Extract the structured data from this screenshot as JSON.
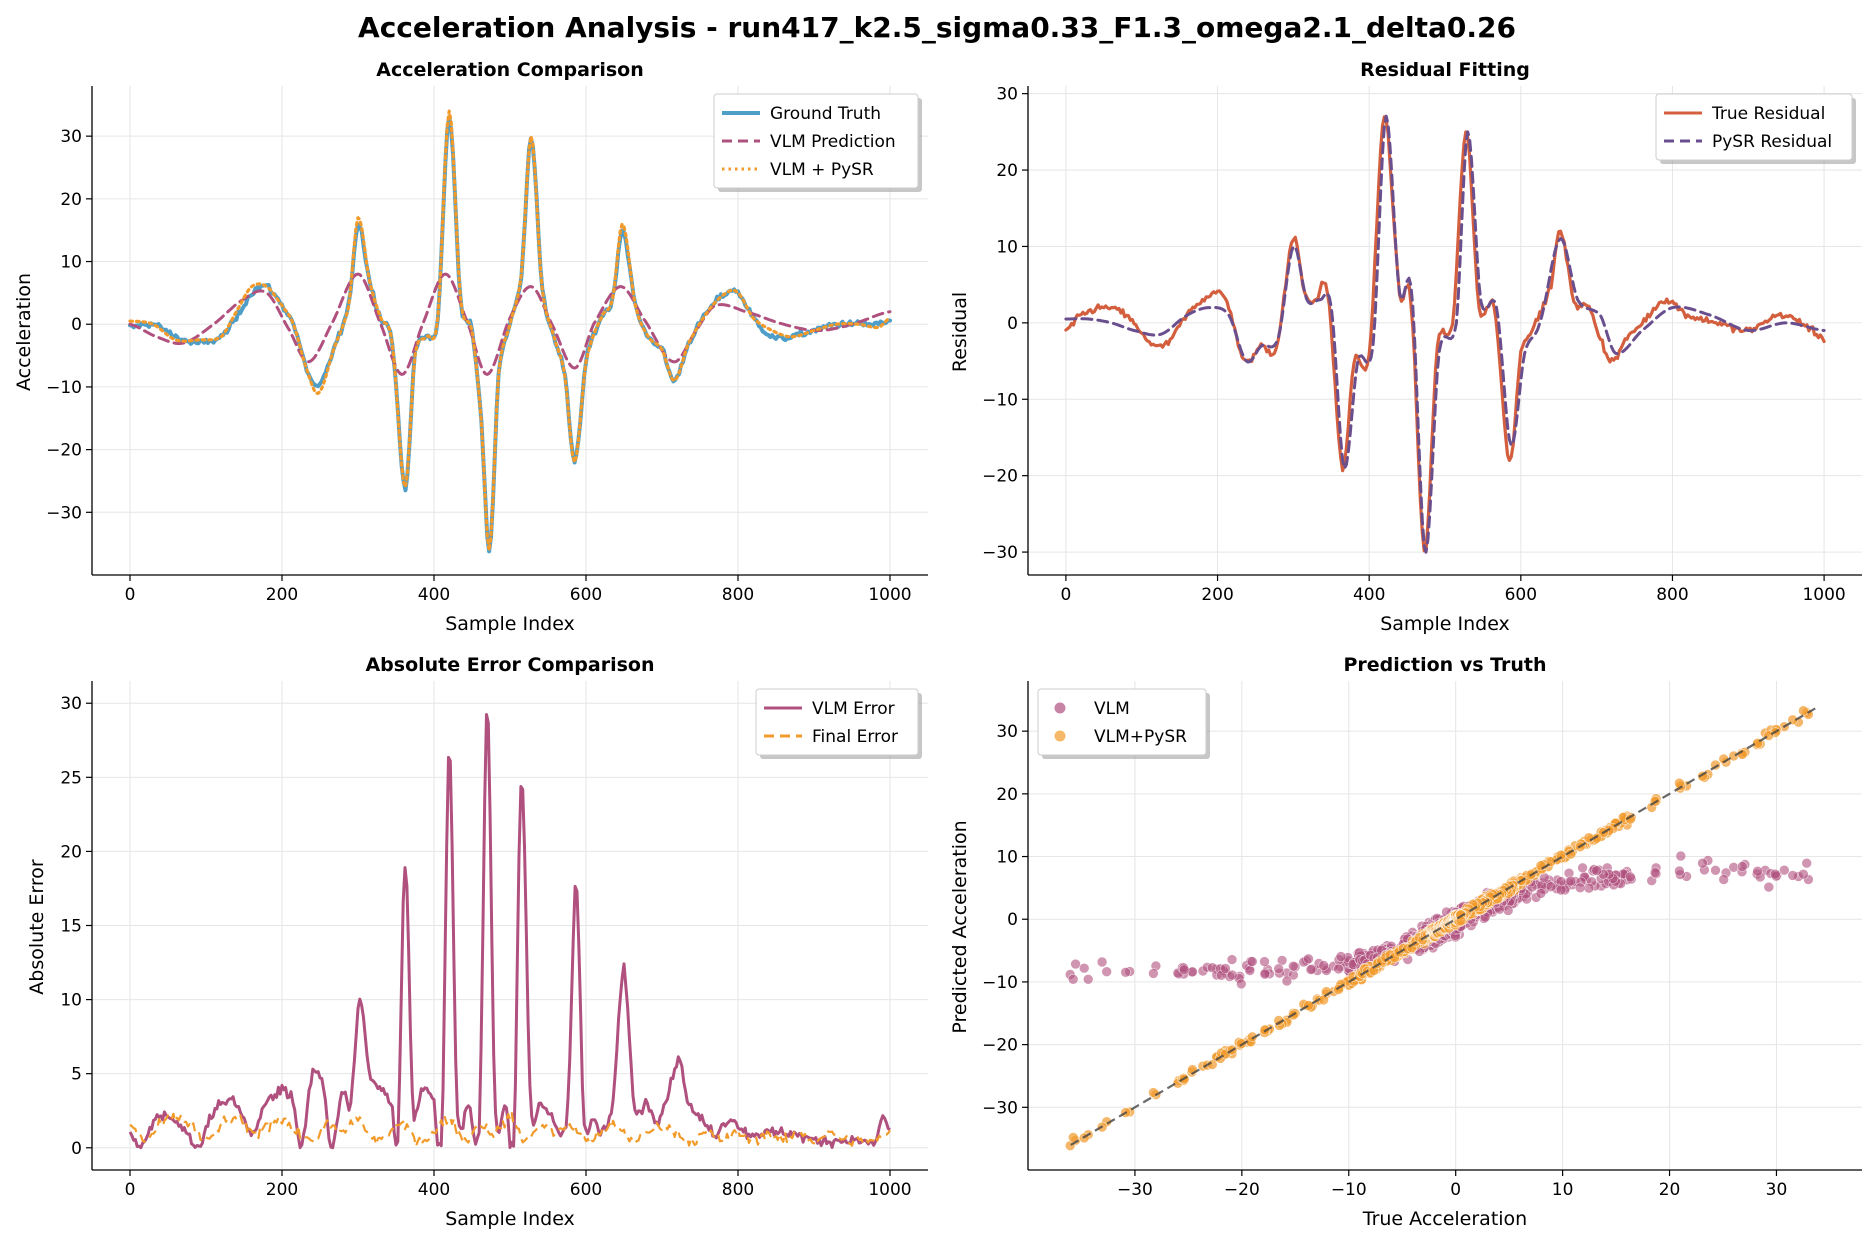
{
  "figure": {
    "title": "Acceleration Analysis - run417_k2.5_sigma0.33_F1.3_omega2.1_delta0.26"
  },
  "colors": {
    "ground_truth": "#4f9ec8",
    "vlm": "#b0507e",
    "pysr": "#f29a2a",
    "true_residual": "#d45f3e",
    "pysr_residual": "#6a4f8f"
  },
  "chart_data": [
    {
      "type": "line",
      "title": "Acceleration Comparison",
      "xlabel": "Sample Index",
      "ylabel": "Acceleration",
      "xlim": [
        -50,
        1050
      ],
      "ylim": [
        -40,
        38
      ],
      "xticks": [
        0,
        200,
        400,
        600,
        800,
        1000
      ],
      "yticks": [
        -30,
        -20,
        -10,
        0,
        10,
        20,
        30
      ],
      "grid": true,
      "legend": "top-right",
      "series": [
        {
          "name": "Ground Truth",
          "style": "solid",
          "x": [
            0,
            30,
            60,
            90,
            120,
            140,
            160,
            180,
            200,
            215,
            232,
            248,
            268,
            288,
            300,
            315,
            330,
            345,
            362,
            375,
            390,
            405,
            420,
            435,
            450,
            462,
            473,
            485,
            500,
            515,
            528,
            542,
            558,
            572,
            585,
            600,
            620,
            635,
            648,
            665,
            682,
            700,
            716,
            735,
            760,
            785,
            800,
            820,
            845,
            870,
            900,
            930,
            960,
            985,
            1000
          ],
          "y": [
            -0.5,
            0,
            -2,
            -3,
            -2,
            1,
            5,
            6,
            3,
            0,
            -7,
            -10,
            -4,
            3,
            16,
            7,
            1,
            -3,
            -26,
            -5,
            -2,
            1,
            33,
            4,
            -1,
            -15,
            -36,
            -8,
            0,
            8,
            30,
            6,
            -2,
            -8,
            -22,
            -6,
            1,
            4,
            15,
            3,
            -2,
            -4,
            -9,
            -3,
            2,
            5,
            5,
            1,
            -2,
            -2,
            -1,
            0,
            0,
            0,
            0.5
          ]
        },
        {
          "name": "VLM Prediction",
          "style": "dashed",
          "x": [
            0,
            35,
            70,
            110,
            150,
            180,
            210,
            235,
            265,
            300,
            330,
            358,
            385,
            415,
            445,
            470,
            500,
            528,
            555,
            585,
            610,
            645,
            675,
            715,
            745,
            770,
            810,
            860,
            905,
            950,
            1000
          ],
          "y": [
            0,
            -2,
            -3,
            0,
            4,
            5,
            -1,
            -6,
            0,
            8,
            0,
            -8,
            0,
            8,
            0,
            -8,
            1,
            6,
            0,
            -7,
            0,
            6,
            1,
            -6,
            -1,
            3,
            2,
            0,
            -1,
            0,
            2
          ]
        },
        {
          "name": "VLM + PySR",
          "style": "dotted",
          "x": [
            0,
            30,
            60,
            90,
            120,
            140,
            160,
            180,
            200,
            215,
            232,
            248,
            268,
            288,
            300,
            315,
            330,
            345,
            362,
            375,
            390,
            405,
            420,
            435,
            450,
            462,
            473,
            485,
            500,
            515,
            528,
            542,
            558,
            572,
            585,
            600,
            620,
            635,
            648,
            665,
            682,
            700,
            716,
            735,
            760,
            785,
            800,
            820,
            845,
            870,
            900,
            930,
            960,
            985,
            1000
          ],
          "y": [
            0.5,
            0,
            -2.5,
            -2.5,
            -2,
            2,
            6,
            6,
            3,
            0,
            -7,
            -11,
            -4,
            3,
            17,
            7,
            1,
            -3,
            -26,
            -5,
            -2,
            1,
            34,
            4,
            -1,
            -15,
            -36,
            -8,
            0,
            8,
            30,
            6,
            -2,
            -8,
            -22,
            -6,
            1,
            4,
            16,
            3,
            -2,
            -4,
            -9,
            -3,
            2,
            5,
            5,
            1,
            -1,
            -2,
            -1,
            0,
            0,
            -0.5,
            1
          ]
        }
      ]
    },
    {
      "type": "line",
      "title": "Residual Fitting",
      "xlabel": "Sample Index",
      "ylabel": "Residual",
      "xlim": [
        -50,
        1050
      ],
      "ylim": [
        -33,
        31
      ],
      "xticks": [
        0,
        200,
        400,
        600,
        800,
        1000
      ],
      "yticks": [
        -30,
        -20,
        -10,
        0,
        10,
        20,
        30
      ],
      "grid": true,
      "legend": "top-right",
      "series": [
        {
          "name": "True Residual",
          "style": "solid",
          "x": [
            0,
            20,
            50,
            80,
            105,
            130,
            160,
            180,
            200,
            215,
            235,
            258,
            278,
            300,
            315,
            330,
            345,
            365,
            380,
            400,
            420,
            440,
            455,
            473,
            490,
            510,
            528,
            545,
            565,
            585,
            600,
            620,
            640,
            652,
            670,
            690,
            705,
            720,
            740,
            760,
            790,
            820,
            860,
            900,
            940,
            970,
            1000
          ],
          "y": [
            -1,
            1,
            2,
            1,
            -2,
            -3,
            1,
            3,
            4,
            2,
            -5,
            -3,
            -3,
            11,
            4,
            3,
            4,
            -19,
            -5,
            -4,
            27,
            4,
            3,
            -30,
            -3,
            0,
            25,
            2,
            2,
            -18,
            -4,
            0,
            5,
            12,
            3,
            2,
            -2,
            -5,
            -2,
            0,
            3,
            1,
            0,
            -1,
            1,
            0,
            -2
          ]
        },
        {
          "name": "PySR Residual",
          "style": "dashed",
          "x": [
            0,
            30,
            60,
            90,
            125,
            160,
            190,
            215,
            238,
            258,
            280,
            300,
            318,
            335,
            350,
            367,
            385,
            405,
            422,
            440,
            456,
            474,
            492,
            515,
            530,
            547,
            568,
            587,
            605,
            625,
            652,
            675,
            705,
            725,
            760,
            800,
            850,
            900,
            950,
            1000
          ],
          "y": [
            0.5,
            0.5,
            0,
            -1,
            -1.5,
            1,
            2,
            1,
            -5,
            -3,
            -2,
            10,
            3,
            3,
            2,
            -19,
            -5,
            -3,
            27,
            4,
            4,
            -30,
            -4,
            0,
            25,
            3,
            2,
            -16,
            -4,
            0,
            11,
            3,
            1,
            -4,
            -1,
            2,
            1,
            -1,
            0,
            -1
          ]
        }
      ]
    },
    {
      "type": "line",
      "title": "Absolute Error Comparison",
      "xlabel": "Sample Index",
      "ylabel": "Absolute Error",
      "xlim": [
        -50,
        1050
      ],
      "ylim": [
        -1.5,
        31.5
      ],
      "xticks": [
        0,
        200,
        400,
        600,
        800,
        1000
      ],
      "yticks": [
        0,
        5,
        10,
        15,
        20,
        25,
        30
      ],
      "grid": true,
      "legend": "top-right",
      "series": [
        {
          "name": "VLM Error",
          "style": "solid",
          "x": [
            0,
            15,
            35,
            55,
            75,
            90,
            105,
            120,
            140,
            160,
            180,
            200,
            215,
            225,
            240,
            255,
            265,
            280,
            290,
            302,
            315,
            330,
            345,
            352,
            362,
            372,
            385,
            400,
            410,
            420,
            430,
            445,
            460,
            470,
            480,
            495,
            505,
            515,
            527,
            540,
            555,
            570,
            577,
            587,
            597,
            610,
            620,
            635,
            650,
            663,
            680,
            695,
            710,
            722,
            735,
            750,
            770,
            790,
            810,
            830,
            850,
            870,
            900,
            930,
            960,
            980,
            990,
            1000
          ],
          "y": [
            1,
            0,
            2,
            2,
            1,
            0,
            2,
            3,
            3,
            1,
            3,
            4,
            3,
            0,
            5,
            4,
            0,
            4,
            3,
            10,
            5,
            4,
            3,
            0,
            19,
            3,
            4,
            3,
            0,
            27,
            3,
            3,
            2,
            30,
            3,
            3,
            0,
            25,
            3,
            3,
            2,
            1,
            4,
            18,
            2,
            2,
            1,
            3,
            12,
            3,
            3,
            2,
            4,
            6,
            3,
            2,
            1,
            2,
            1,
            1,
            1,
            1,
            0.5,
            0.5,
            0.5,
            0.3,
            2,
            1.2
          ]
        },
        {
          "name": "Final Error",
          "style": "dashed",
          "x": [
            0,
            20,
            40,
            60,
            80,
            100,
            120,
            140,
            160,
            180,
            200,
            220,
            240,
            260,
            280,
            300,
            320,
            340,
            360,
            380,
            400,
            420,
            440,
            460,
            480,
            500,
            520,
            540,
            560,
            580,
            600,
            620,
            640,
            660,
            680,
            700,
            720,
            740,
            760,
            780,
            800,
            820,
            840,
            860,
            880,
            900,
            920,
            940,
            960,
            980,
            1000
          ],
          "y": [
            1.5,
            0.5,
            1.5,
            2,
            1.5,
            0.5,
            1.5,
            2,
            1,
            1.5,
            2,
            1,
            0.5,
            1.5,
            1,
            2,
            0.5,
            1,
            1.5,
            0.5,
            1,
            2,
            0.5,
            1.5,
            1,
            2,
            0.5,
            1.5,
            1,
            1.5,
            0.5,
            1,
            1.5,
            0.5,
            1,
            1.5,
            1,
            0.5,
            1,
            0.5,
            1,
            0.5,
            1,
            0.5,
            1,
            0.5,
            1,
            0.5,
            0.5,
            0.5,
            1
          ]
        }
      ]
    },
    {
      "type": "scatter",
      "title": "Prediction vs Truth",
      "xlabel": "True Acceleration",
      "ylabel": "Predicted Acceleration",
      "xlim": [
        -40,
        38
      ],
      "ylim": [
        -40,
        38
      ],
      "xticks": [
        -30,
        -20,
        -10,
        0,
        10,
        20,
        30
      ],
      "yticks": [
        -30,
        -20,
        -10,
        0,
        10,
        20,
        30
      ],
      "grid": true,
      "legend": "top-left",
      "reference_line": {
        "x": [
          -36,
          34
        ],
        "y": [
          -36,
          34
        ]
      },
      "series": [
        {
          "name": "VLM",
          "model": "vlm_fit"
        },
        {
          "name": "VLM+PySR",
          "model": "identity"
        }
      ]
    }
  ]
}
